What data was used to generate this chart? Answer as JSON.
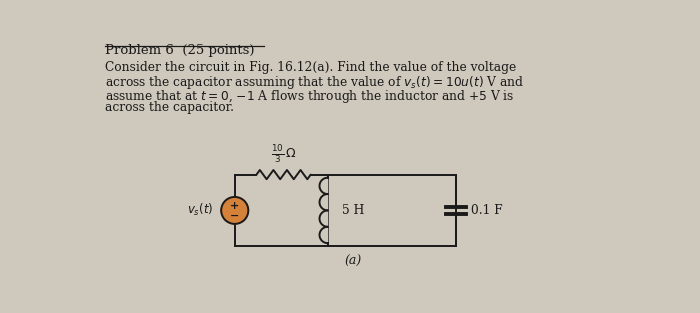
{
  "title": "Problem 6  (25 points)",
  "body_line1": "Consider the circuit in Fig. 16.12(a). Find the value of the voltage",
  "body_line2": "across the capacitor assuming that the value of $v_s(t) = 10u(t)$ V and",
  "body_line3": "assume that at $t = 0$, $-1$ A flows through the inductor and $+5$ V is",
  "body_line4": "across the capacitor.",
  "label_a": "(a)",
  "resistor_label": "$\\frac{10}{3}\\,\\Omega$",
  "inductor_label": "5 H",
  "capacitor_label": "0.1 F",
  "source_label": "$v_s(t)$",
  "bg_color": "#cfc8bc",
  "text_color": "#1a1a1a",
  "circuit_color": "#1a1a1a",
  "source_fill": "#d4813a",
  "fig_w": 7.0,
  "fig_h": 3.13,
  "dpi": 100
}
